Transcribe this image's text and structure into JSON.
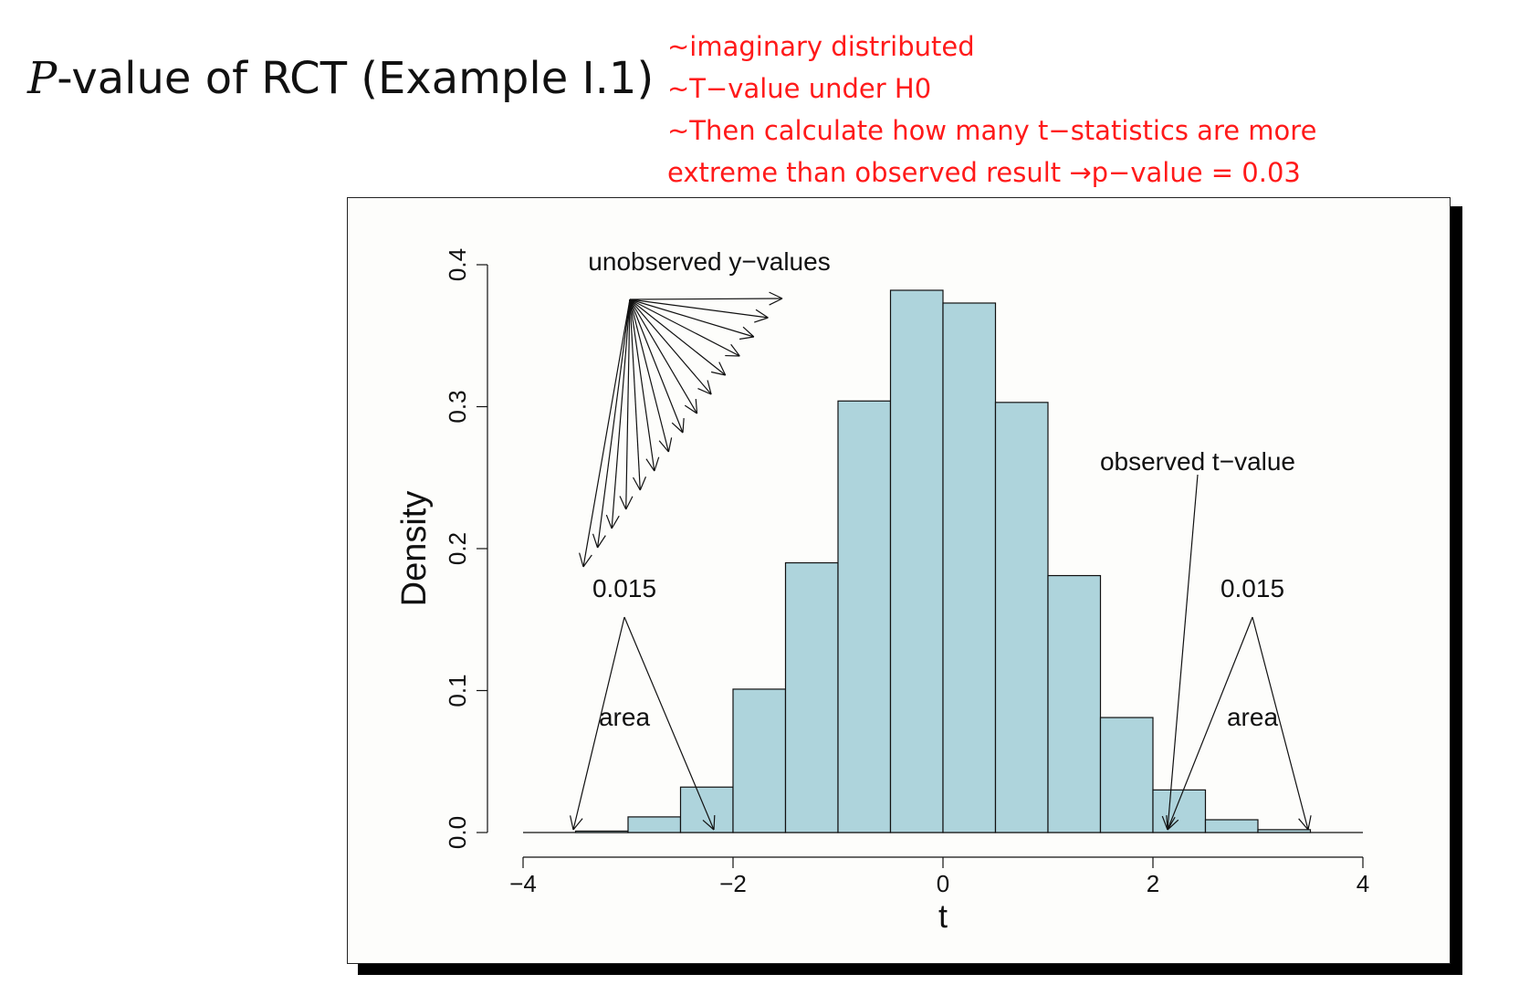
{
  "slide": {
    "title_var": "P",
    "title_rest": "-value of RCT (Example I.1)",
    "notes": [
      "~imaginary distributed",
      "~T−value under H0",
      "~Then calculate how many t−statistics are more",
      "extreme than observed result →p−value = 0.03"
    ]
  },
  "chart_data": {
    "type": "bar",
    "title": "",
    "xlabel": "t",
    "ylabel": "Density",
    "xlim": [
      -4,
      4
    ],
    "ylim": [
      0,
      0.4
    ],
    "xticks": [
      "−4",
      "−2",
      "0",
      "2",
      "4"
    ],
    "yticks": [
      "0.0",
      "0.1",
      "0.2",
      "0.3",
      "0.4"
    ],
    "bins": [
      {
        "x0": -3.5,
        "x1": -3.0,
        "density": 0.001
      },
      {
        "x0": -3.0,
        "x1": -2.5,
        "density": 0.011
      },
      {
        "x0": -2.5,
        "x1": -2.0,
        "density": 0.032
      },
      {
        "x0": -2.0,
        "x1": -1.5,
        "density": 0.101
      },
      {
        "x0": -1.5,
        "x1": -1.0,
        "density": 0.19
      },
      {
        "x0": -1.0,
        "x1": -0.5,
        "density": 0.304
      },
      {
        "x0": -0.5,
        "x1": 0.0,
        "density": 0.382
      },
      {
        "x0": 0.0,
        "x1": 0.5,
        "density": 0.373
      },
      {
        "x0": 0.5,
        "x1": 1.0,
        "density": 0.303
      },
      {
        "x0": 1.0,
        "x1": 1.5,
        "density": 0.181
      },
      {
        "x0": 1.5,
        "x1": 2.0,
        "density": 0.081
      },
      {
        "x0": 2.0,
        "x1": 2.5,
        "density": 0.03
      },
      {
        "x0": 2.5,
        "x1": 3.0,
        "density": 0.009
      },
      {
        "x0": 3.0,
        "x1": 3.5,
        "density": 0.002
      }
    ],
    "bar_color": "#aed4dc",
    "annotations": {
      "unobserved": "unobserved y−values",
      "observed": "observed t−value",
      "tail_left_value": "0.015",
      "tail_left_label": "area",
      "tail_right_value": "0.015",
      "tail_right_label": "area"
    }
  }
}
